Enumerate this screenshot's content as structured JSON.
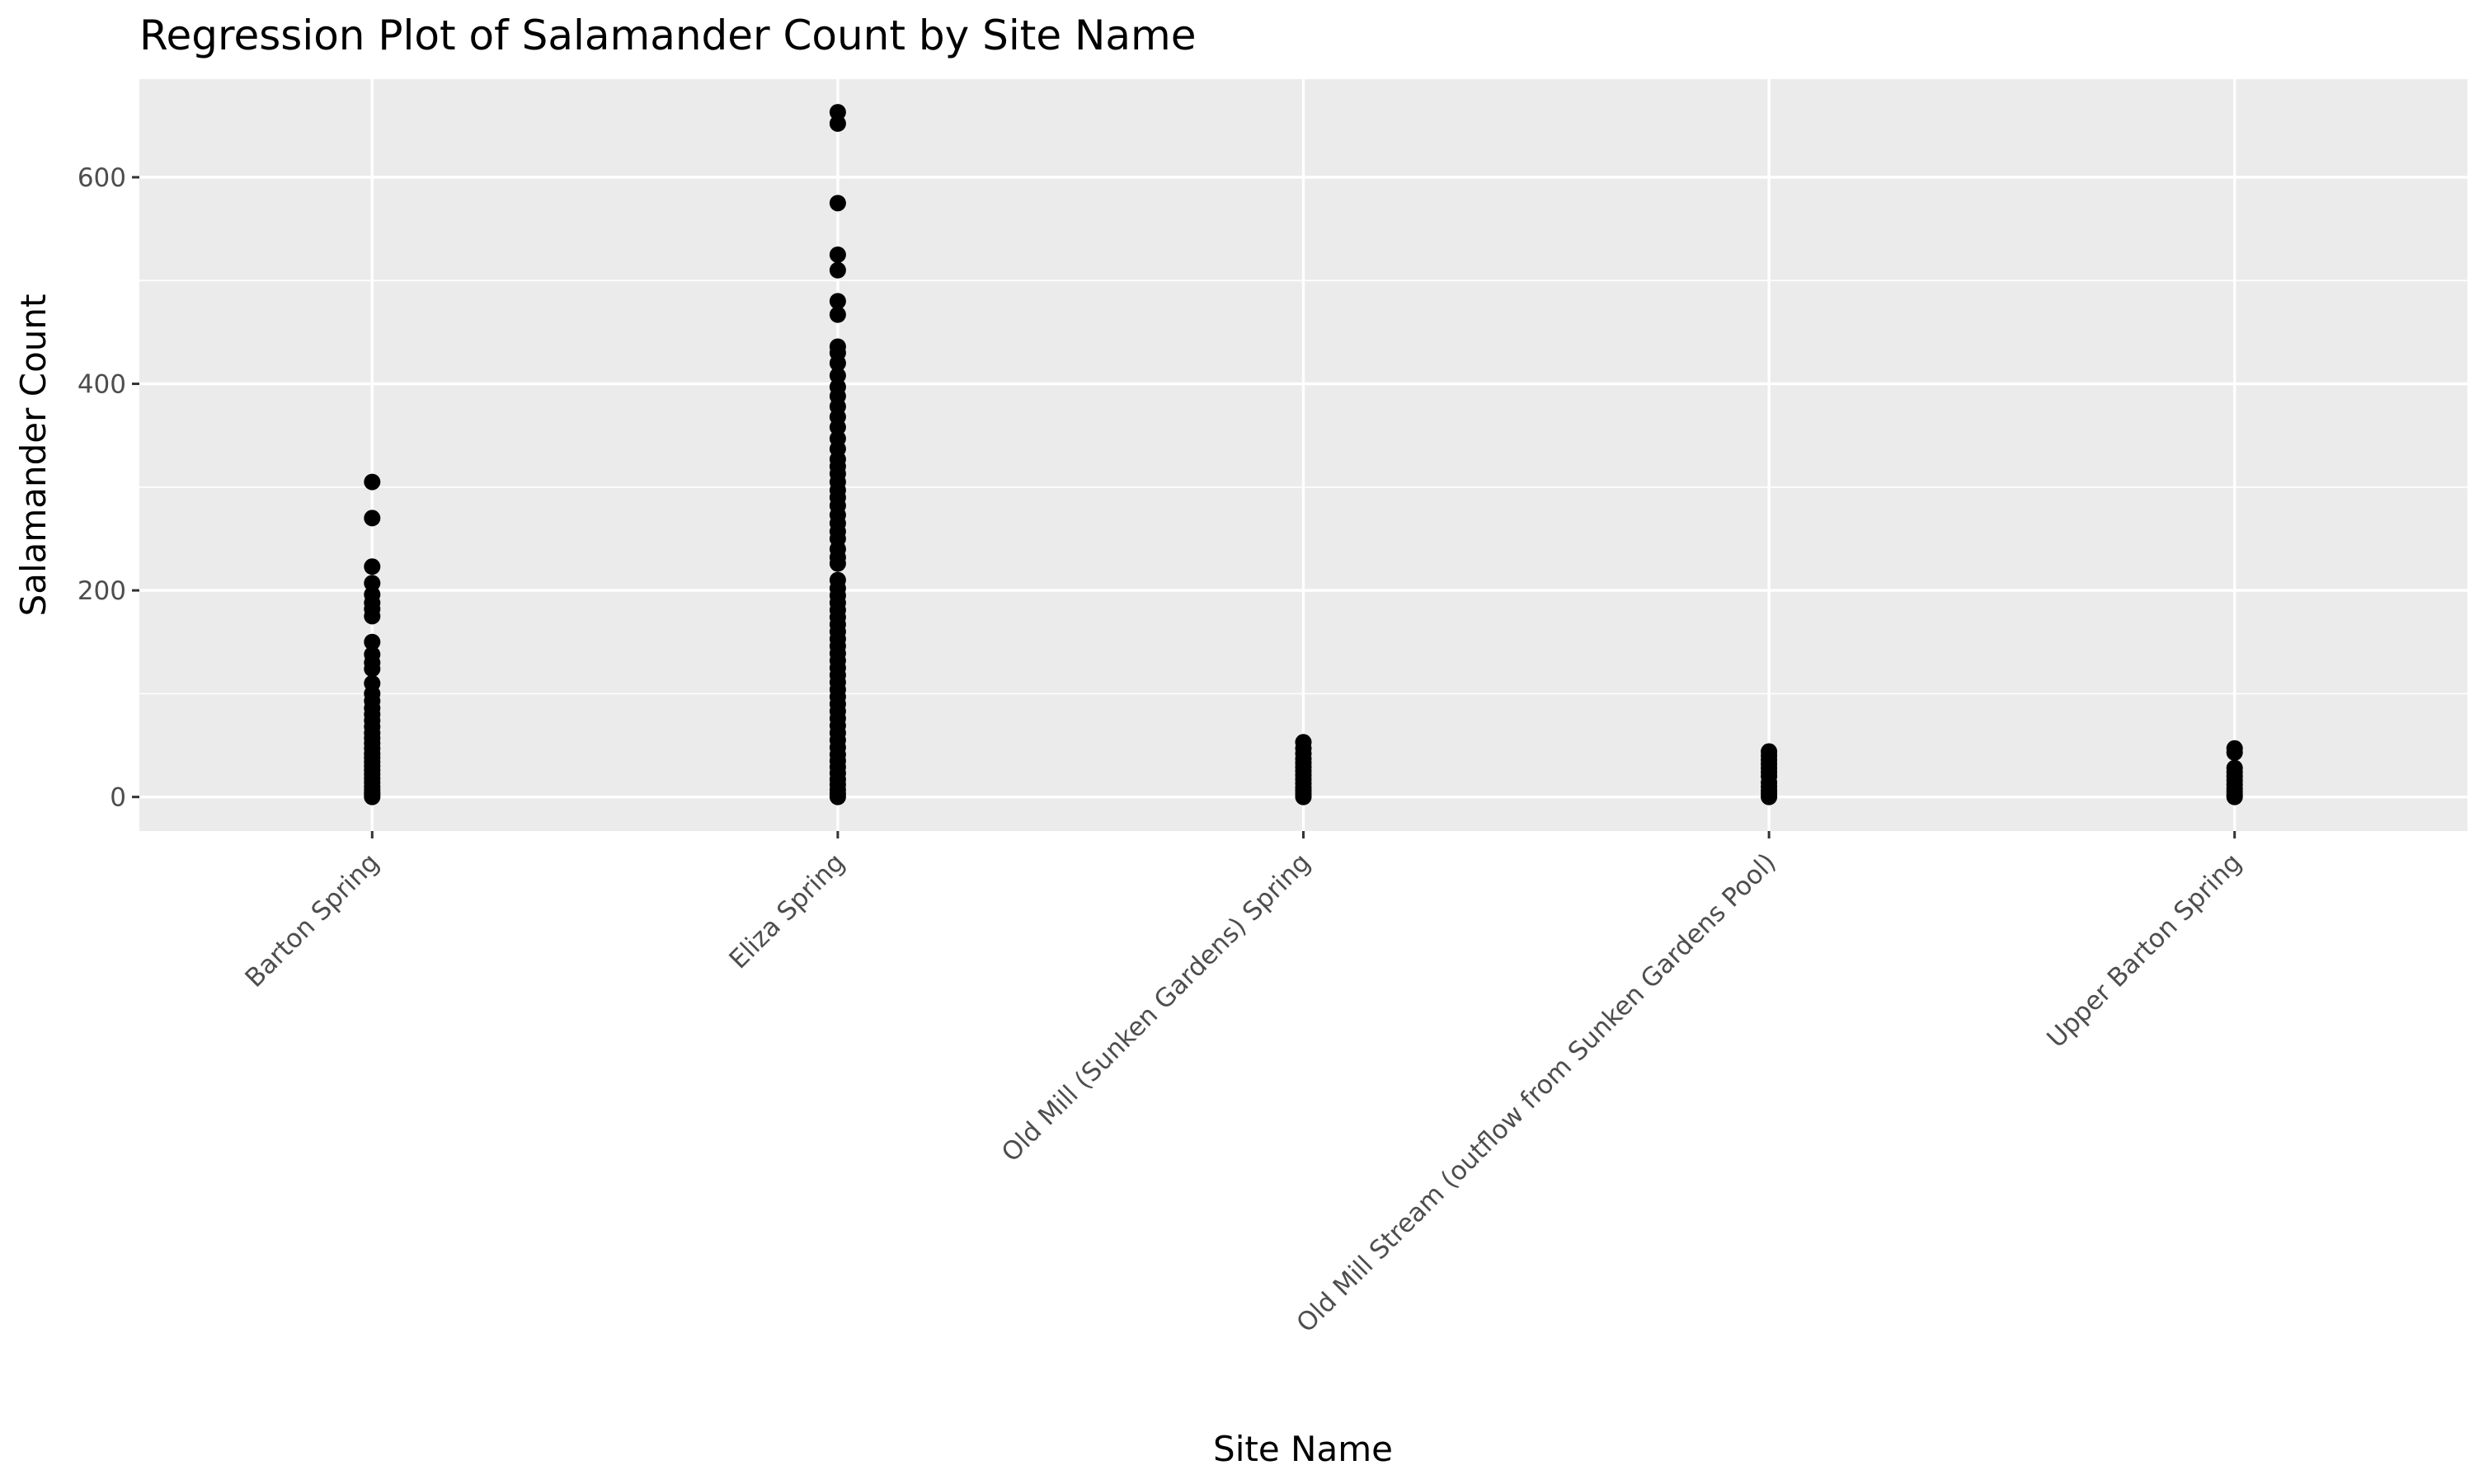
{
  "chart_data": {
    "type": "scatter",
    "title": "Regression Plot of Salamander Count by Site Name",
    "xlabel": "Site Name",
    "ylabel": "Salamander Count",
    "categories": [
      "Barton Spring",
      "Eliza Spring",
      "Old Mill (Sunken Gardens) Spring",
      "Old Mill Stream (outflow from Sunken Gardens Pool)",
      "Upper Barton Spring"
    ],
    "y_ticks": [
      0,
      200,
      400,
      600
    ],
    "ylim": [
      -33,
      695
    ],
    "grid": true,
    "series": [
      {
        "values": [
          [
            305,
            270,
            223,
            207,
            196,
            188,
            182,
            175,
            150,
            138,
            130,
            124,
            110,
            100,
            93,
            86,
            80,
            74,
            68,
            62,
            57,
            52,
            47,
            42,
            38,
            34,
            30,
            26,
            22,
            18,
            14,
            10,
            7,
            4,
            2,
            0
          ],
          [
            663,
            652,
            575,
            525,
            510,
            480,
            467,
            436,
            430,
            420,
            408,
            397,
            388,
            378,
            368,
            358,
            347,
            337,
            327,
            320,
            313,
            305,
            297,
            290,
            282,
            273,
            265,
            257,
            250,
            240,
            232,
            226,
            210,
            202,
            195,
            188,
            181,
            174,
            167,
            160,
            153,
            146,
            139,
            132,
            125,
            118,
            111,
            104,
            97,
            90,
            83,
            76,
            69,
            62,
            55,
            48,
            41,
            35,
            29,
            23,
            17,
            12,
            7,
            3,
            0
          ],
          [
            53,
            47,
            42,
            37,
            33,
            29,
            25,
            21,
            17,
            13,
            9,
            6,
            3,
            0
          ],
          [
            44,
            40,
            36,
            32,
            28,
            24,
            20,
            14,
            10,
            6,
            3,
            0
          ],
          [
            47,
            43,
            28,
            24,
            20,
            16,
            12,
            8,
            5,
            2,
            0
          ]
        ]
      }
    ]
  }
}
